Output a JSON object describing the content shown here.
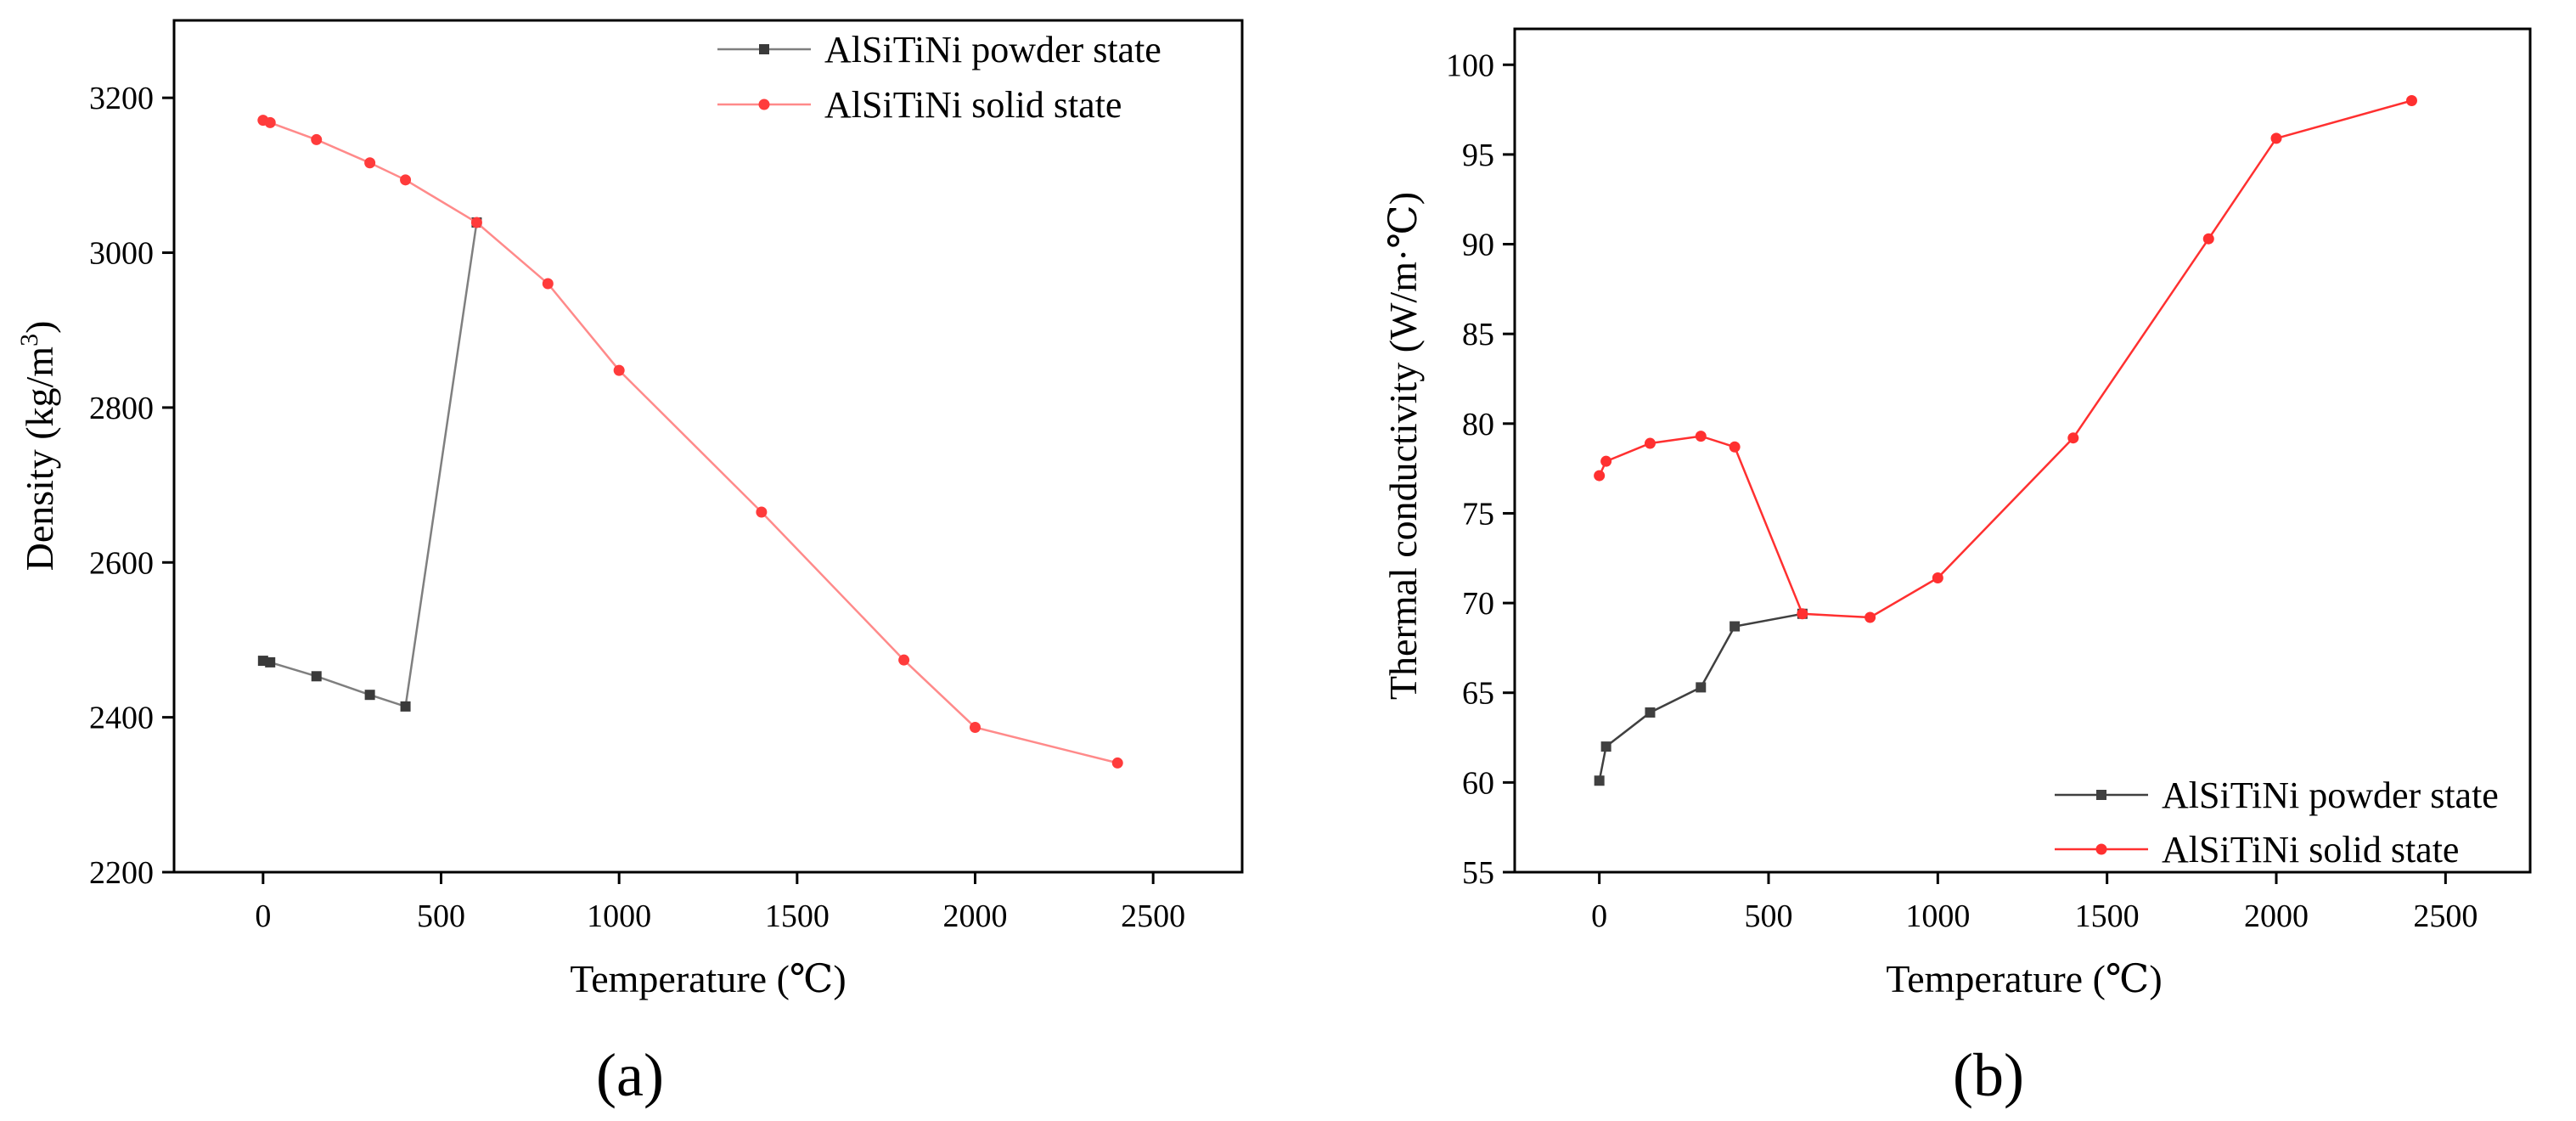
{
  "chart_data": [
    {
      "type": "line",
      "panel_label": "(a)",
      "xlabel": "Temperature (℃)",
      "ylabel_main": "Density (kg/m",
      "ylabel_sup": "3",
      "ylabel_close": ")",
      "xlim": [
        -250,
        2750
      ],
      "ylim": [
        2200,
        3300
      ],
      "xticks": [
        0,
        500,
        1000,
        1500,
        2000,
        2500
      ],
      "yticks": [
        2200,
        2400,
        2600,
        2800,
        3000,
        3200
      ],
      "legend_position": "top-right",
      "series": [
        {
          "name": "AlSiTiNi powder state",
          "color": "#7f7f7f",
          "marker_color": "#3a3a3a",
          "marker": "square",
          "x": [
            0,
            20,
            150,
            300,
            400,
            600
          ],
          "y": [
            2473,
            2471,
            2453,
            2429,
            2414,
            3039
          ]
        },
        {
          "name": "AlSiTiNi solid state",
          "color": "#ff8a8a",
          "marker_color": "#ff3b3b",
          "marker": "circle",
          "x": [
            0,
            20,
            150,
            300,
            400,
            600,
            800,
            1000,
            1400,
            1800,
            2000,
            2400
          ],
          "y": [
            3171,
            3168,
            3146,
            3116,
            3094,
            3039,
            2960,
            2848,
            2665,
            2474,
            2387,
            2341
          ]
        }
      ]
    },
    {
      "type": "line",
      "panel_label": "(b)",
      "xlabel": "Temperature (℃)",
      "ylabel": "Thermal conductivity (W/m·℃)",
      "xlim": [
        -250,
        2750
      ],
      "ylim": [
        55,
        102
      ],
      "xticks": [
        0,
        500,
        1000,
        1500,
        2000,
        2500
      ],
      "yticks": [
        55,
        60,
        65,
        70,
        75,
        80,
        85,
        90,
        95,
        100
      ],
      "legend_position": "bottom-right",
      "series": [
        {
          "name": "AlSiTiNi powder state",
          "color": "#404040",
          "marker_color": "#404040",
          "marker": "square",
          "x": [
            0,
            20,
            150,
            300,
            400,
            600
          ],
          "y": [
            60.1,
            62.0,
            63.9,
            65.3,
            68.7,
            69.4
          ]
        },
        {
          "name": "AlSiTiNi solid state",
          "color": "#ff3030",
          "marker_color": "#ff3030",
          "marker": "circle",
          "x": [
            0,
            20,
            150,
            300,
            400,
            600,
            800,
            1000,
            1400,
            1800,
            2000,
            2400
          ],
          "y": [
            77.1,
            77.9,
            78.9,
            79.3,
            78.7,
            69.4,
            69.2,
            71.4,
            79.2,
            90.3,
            95.9,
            98.0
          ]
        }
      ]
    }
  ]
}
